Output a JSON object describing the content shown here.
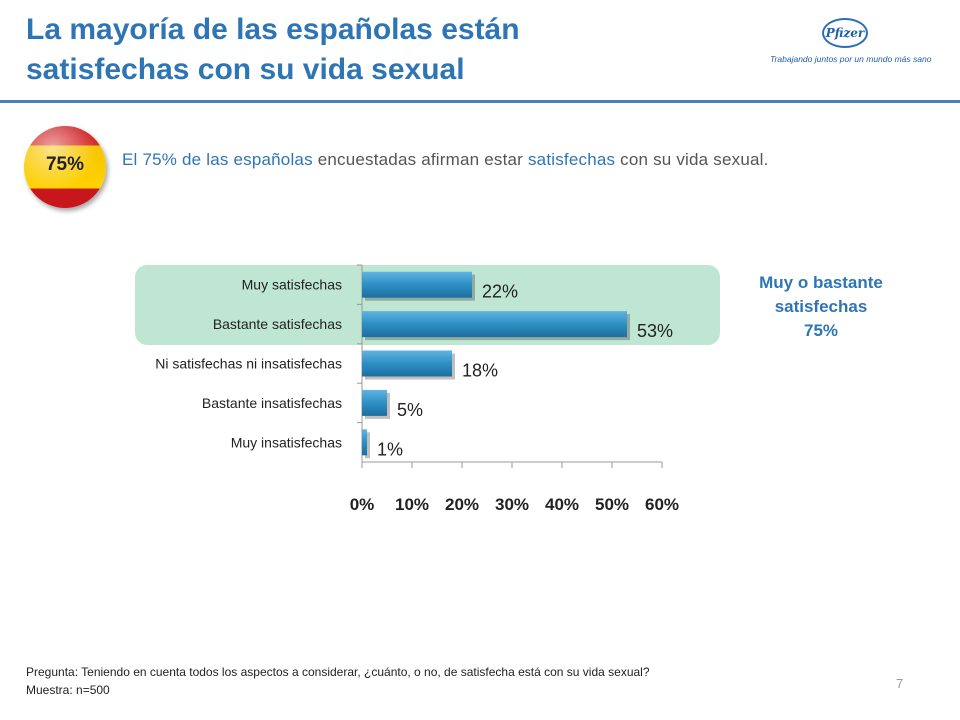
{
  "header": {
    "title_line1": "La mayoría de las españolas están",
    "title_line2": "satisfechas con su vida sexual",
    "logo_text": "Pfizer",
    "logo_tagline": "Trabajando juntos por un mundo más sano"
  },
  "badge": {
    "value": "75%"
  },
  "headline": {
    "part1": "El 75% de las españolas",
    "part2": " encuestadas afirman estar ",
    "part3": "satisfechas",
    "part4": " con su vida sexual."
  },
  "side_note": {
    "line1": "Muy o bastante",
    "line2": "satisfechas",
    "line3": "75%"
  },
  "footer": {
    "question": "Pregunta: Teniendo en cuenta todos los aspectos a considerar, ¿cuánto, o no, de satisfecha está con su vida sexual?",
    "sample": "Muestra: n=500",
    "page": "7"
  },
  "colors": {
    "bar": "#2e8fc4",
    "highlight": "#bfe6d3",
    "title": "#2e75b6"
  },
  "chart_data": {
    "type": "bar",
    "orientation": "horizontal",
    "categories": [
      "Muy satisfechas",
      "Bastante satisfechas",
      "Ni satisfechas ni insatisfechas",
      "Bastante insatisfechas",
      "Muy insatisfechas"
    ],
    "values": [
      22,
      53,
      18,
      5,
      1
    ],
    "data_labels": [
      "22%",
      "53%",
      "18%",
      "5%",
      "1%"
    ],
    "xticks": [
      "0%",
      "10%",
      "20%",
      "30%",
      "40%",
      "50%",
      "60%"
    ],
    "xlim": [
      0,
      60
    ],
    "highlighted_categories": [
      "Muy satisfechas",
      "Bastante satisfechas"
    ]
  }
}
